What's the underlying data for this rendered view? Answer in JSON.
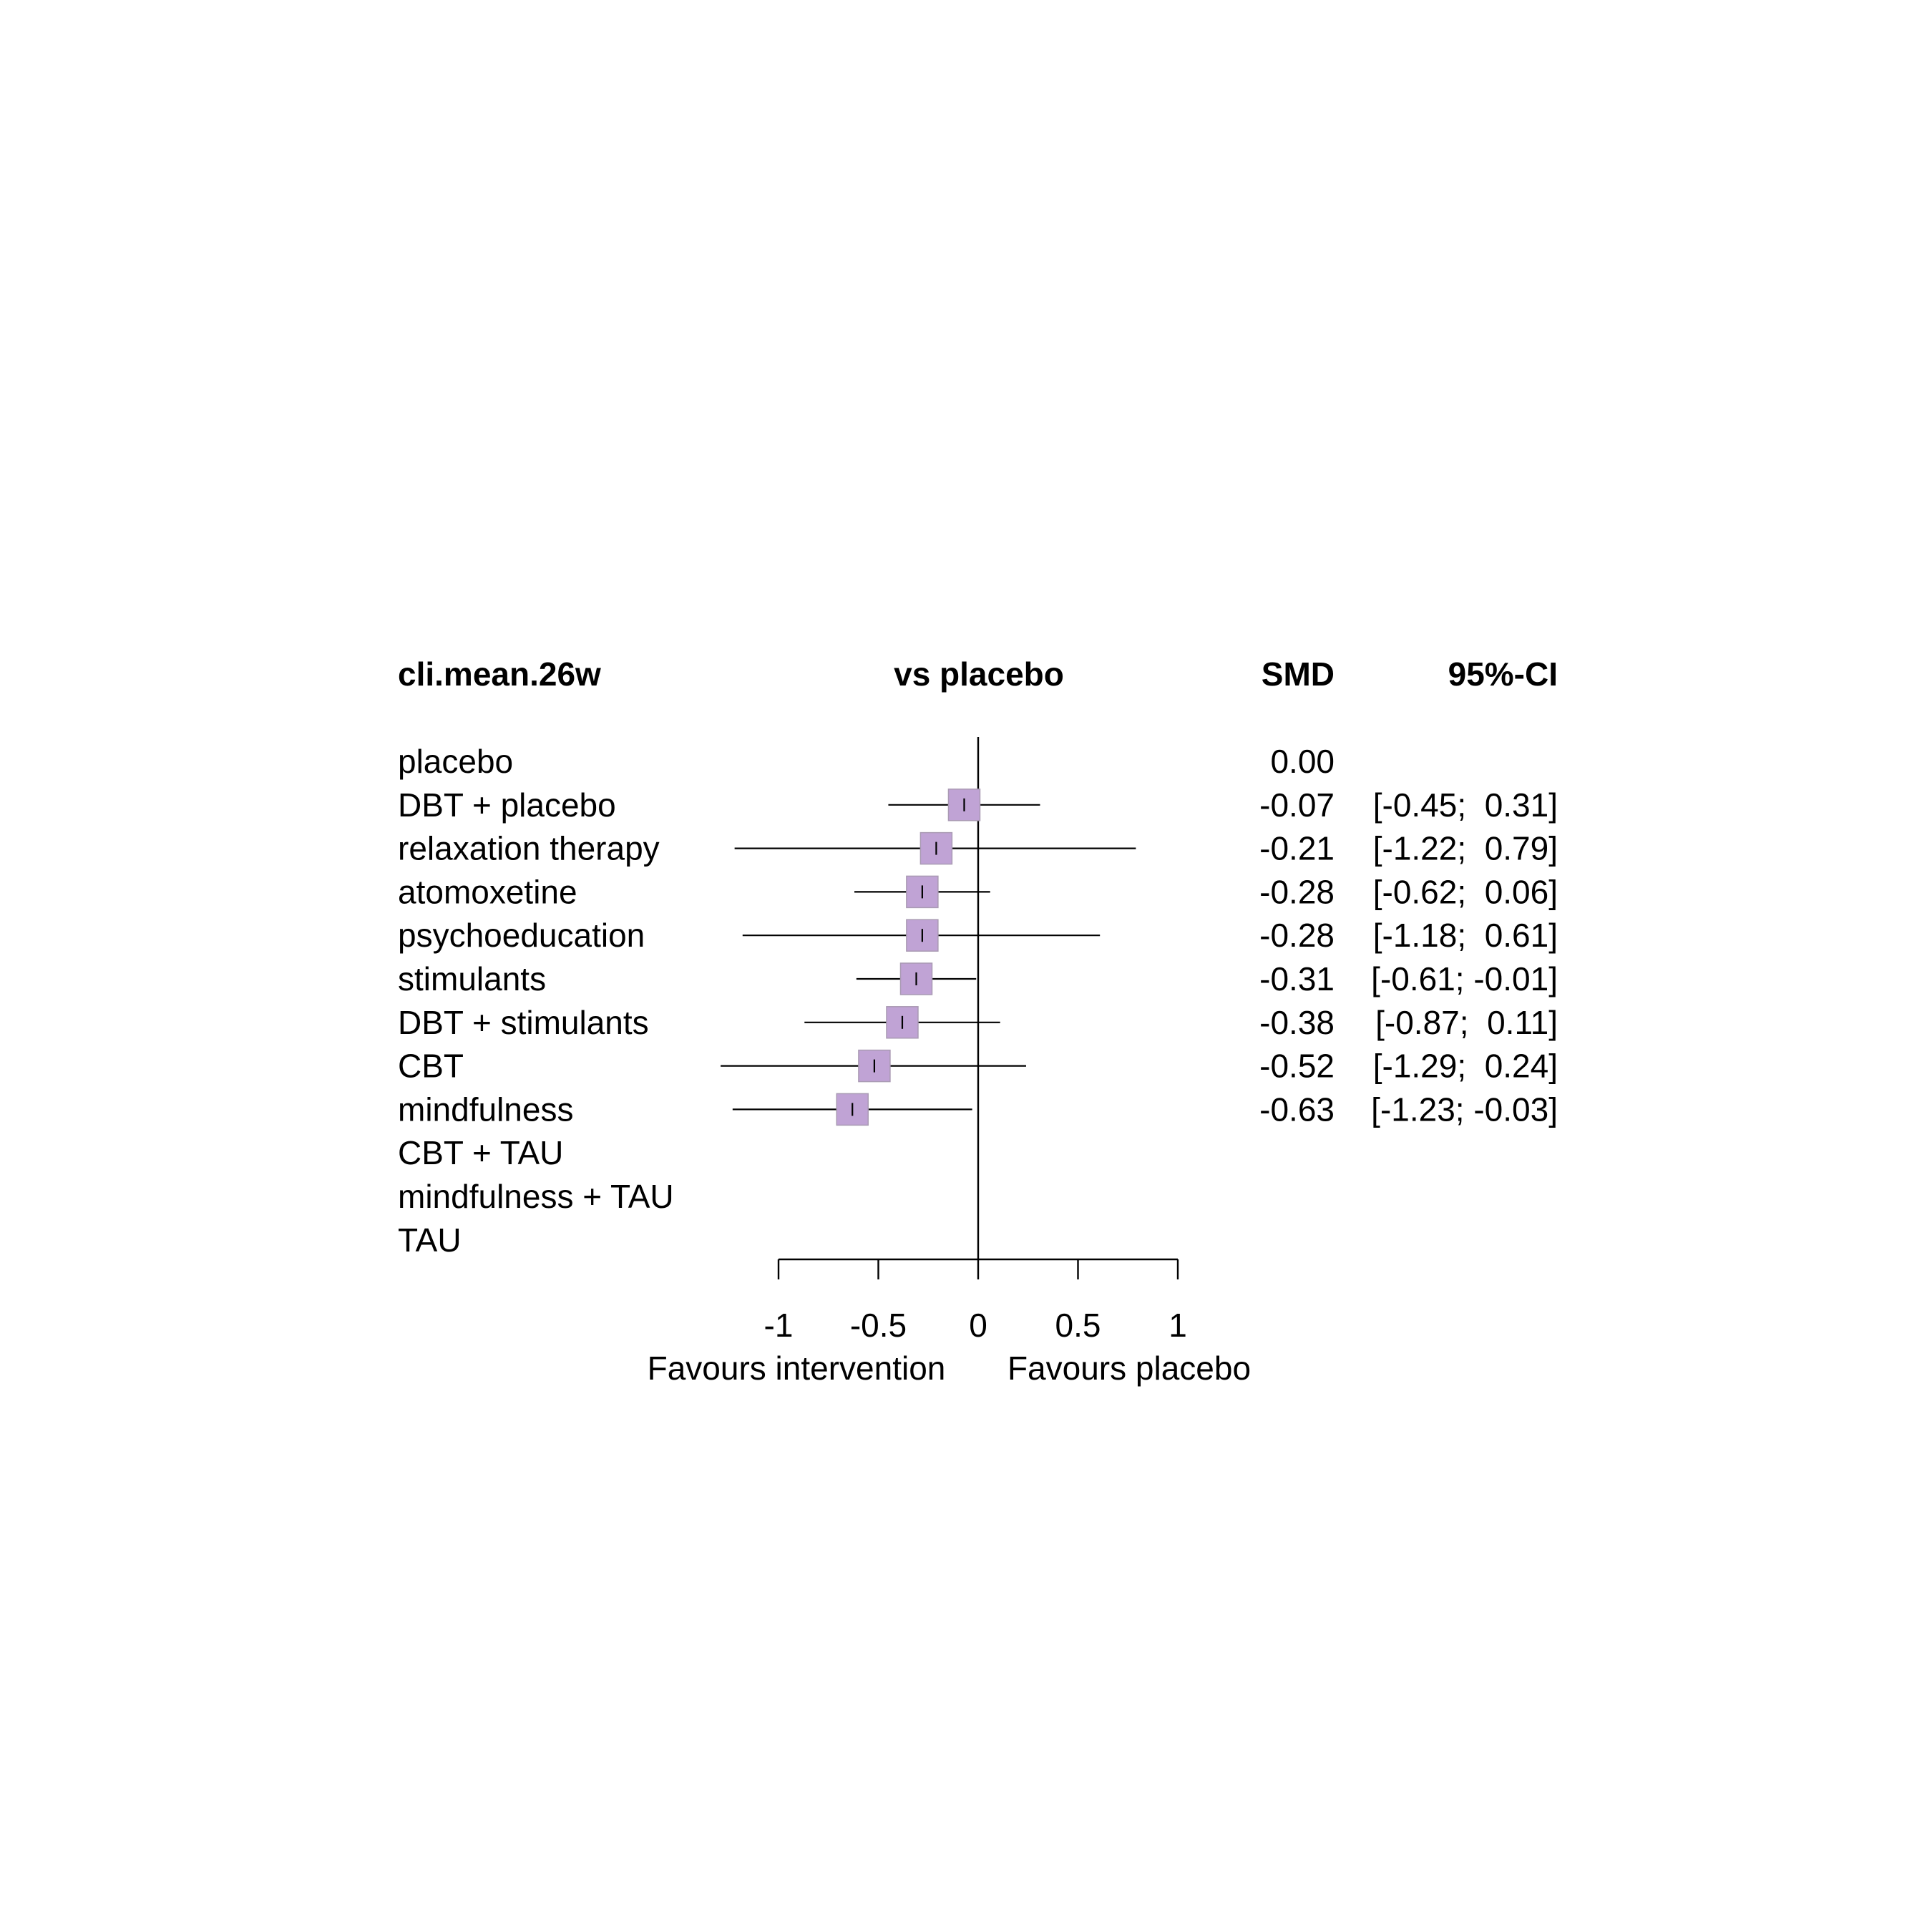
{
  "colors": {
    "box_fill": "#C0A3D5",
    "box_stroke": "#A99AB3",
    "line": "#000000",
    "background": "#FFFFFF"
  },
  "headers": {
    "outcome": "cli.mean.26w",
    "comparison": "vs placebo",
    "effect": "SMD",
    "ci": "95%-CI"
  },
  "chart_data": {
    "type": "forest",
    "reference_line": 0,
    "xlim": [
      -1,
      1
    ],
    "ticks": [
      -1,
      -0.5,
      0,
      0.5,
      1
    ],
    "tick_labels": [
      "-1",
      "-0.5",
      "0",
      "0.5",
      "1"
    ],
    "xlabel_left": "Favours intervention",
    "xlabel_right": "Favours placebo",
    "rows": [
      {
        "label": "placebo",
        "smd": 0.0,
        "lower": null,
        "upper": null,
        "smd_text": "0.00",
        "ci_text": ""
      },
      {
        "label": "DBT + placebo",
        "smd": -0.07,
        "lower": -0.45,
        "upper": 0.31,
        "smd_text": "-0.07",
        "ci_text": "[-0.45;  0.31]"
      },
      {
        "label": "relaxation therapy",
        "smd": -0.21,
        "lower": -1.22,
        "upper": 0.79,
        "smd_text": "-0.21",
        "ci_text": "[-1.22;  0.79]"
      },
      {
        "label": "atomoxetine",
        "smd": -0.28,
        "lower": -0.62,
        "upper": 0.06,
        "smd_text": "-0.28",
        "ci_text": "[-0.62;  0.06]"
      },
      {
        "label": "psychoeducation",
        "smd": -0.28,
        "lower": -1.18,
        "upper": 0.61,
        "smd_text": "-0.28",
        "ci_text": "[-1.18;  0.61]"
      },
      {
        "label": "stimulants",
        "smd": -0.31,
        "lower": -0.61,
        "upper": -0.01,
        "smd_text": "-0.31",
        "ci_text": "[-0.61; -0.01]"
      },
      {
        "label": "DBT + stimulants",
        "smd": -0.38,
        "lower": -0.87,
        "upper": 0.11,
        "smd_text": "-0.38",
        "ci_text": "[-0.87;  0.11]"
      },
      {
        "label": "CBT",
        "smd": -0.52,
        "lower": -1.29,
        "upper": 0.24,
        "smd_text": "-0.52",
        "ci_text": "[-1.29;  0.24]"
      },
      {
        "label": "mindfulness",
        "smd": -0.63,
        "lower": -1.23,
        "upper": -0.03,
        "smd_text": "-0.63",
        "ci_text": "[-1.23; -0.03]"
      },
      {
        "label": "CBT + TAU",
        "smd": null,
        "lower": null,
        "upper": null,
        "smd_text": "",
        "ci_text": ""
      },
      {
        "label": "mindfulness + TAU",
        "smd": null,
        "lower": null,
        "upper": null,
        "smd_text": "",
        "ci_text": ""
      },
      {
        "label": "TAU",
        "smd": null,
        "lower": null,
        "upper": null,
        "smd_text": "",
        "ci_text": ""
      }
    ]
  }
}
